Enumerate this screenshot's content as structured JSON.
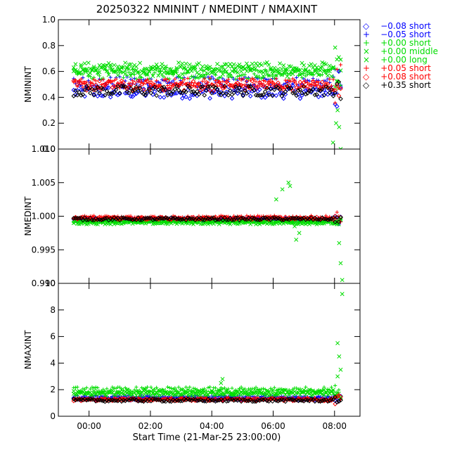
{
  "chart_data": {
    "type": "scatter",
    "title": "20250322 NMININT / NMEDINT / NMAXINT",
    "xlabel": "Start Time (21-Mar-25 23:00:00)",
    "x_ticks": [
      "00:00",
      "02:00",
      "04:00",
      "06:00",
      "08:00"
    ],
    "x_tick_hours": [
      1,
      3,
      5,
      7,
      9
    ],
    "xlim_hours": [
      0.0,
      9.83
    ],
    "legend_position": "right",
    "legend": [
      {
        "offset": "−0.08",
        "type": "short",
        "symbol": "◇",
        "color": "#0000ff"
      },
      {
        "offset": "−0.05",
        "type": "short",
        "symbol": "+",
        "color": "#0000ff"
      },
      {
        "offset": "+0.00",
        "type": "short",
        "symbol": "+",
        "color": "#00dd00"
      },
      {
        "offset": "+0.00",
        "type": "middle",
        "symbol": "×",
        "color": "#00dd00"
      },
      {
        "offset": "+0.00",
        "type": "long",
        "symbol": "×",
        "color": "#00dd00"
      },
      {
        "offset": "+0.05",
        "type": "short",
        "symbol": "+",
        "color": "#ff0000"
      },
      {
        "offset": "+0.08",
        "type": "short",
        "symbol": "◇",
        "color": "#ff0000"
      },
      {
        "offset": "+0.35",
        "type": "short",
        "symbol": "◇",
        "color": "#000000"
      }
    ],
    "panels": [
      {
        "ylabel": "NMININT",
        "ylim": [
          0.0,
          1.0
        ],
        "y_ticks": [
          "0.0",
          "0.2",
          "0.4",
          "0.6",
          "0.8",
          "1.0"
        ],
        "y_tick_values": [
          0.0,
          0.2,
          0.4,
          0.6,
          0.8,
          1.0
        ],
        "series_levels": [
          {
            "legend_index": 0,
            "level": 0.44,
            "spread": 0.05
          },
          {
            "legend_index": 1,
            "level": 0.52,
            "spread": 0.04
          },
          {
            "legend_index": 2,
            "level": 0.58,
            "spread": 0.04
          },
          {
            "legend_index": 3,
            "level": 0.63,
            "spread": 0.04
          },
          {
            "legend_index": 4,
            "level": 0.6,
            "spread": 0.04
          },
          {
            "legend_index": 5,
            "level": 0.51,
            "spread": 0.04
          },
          {
            "legend_index": 6,
            "level": 0.49,
            "spread": 0.04
          },
          {
            "legend_index": 7,
            "level": 0.45,
            "spread": 0.04
          }
        ],
        "late_points": [
          [
            8.95,
            0.05
          ],
          [
            9.05,
            0.2
          ],
          [
            9.15,
            0.17
          ],
          [
            9.2,
            0.0
          ],
          [
            9.1,
            0.3
          ]
        ]
      },
      {
        "ylabel": "NMEDINT",
        "ylim": [
          0.99,
          1.01
        ],
        "y_ticks": [
          "0.990",
          "0.995",
          "1.000",
          "1.005",
          "1.010"
        ],
        "y_tick_values": [
          0.99,
          0.995,
          1.0,
          1.005,
          1.01
        ],
        "series_levels": [
          {
            "legend_index": 0,
            "level": 0.9995,
            "spread": 0.0002
          },
          {
            "legend_index": 1,
            "level": 0.9996,
            "spread": 0.0002
          },
          {
            "legend_index": 2,
            "level": 0.9992,
            "spread": 0.0002
          },
          {
            "legend_index": 3,
            "level": 0.999,
            "spread": 0.0002
          },
          {
            "legend_index": 4,
            "level": 0.9993,
            "spread": 0.0002
          },
          {
            "legend_index": 5,
            "level": 0.9998,
            "spread": 0.0003
          },
          {
            "legend_index": 6,
            "level": 0.9997,
            "spread": 0.0002
          },
          {
            "legend_index": 7,
            "level": 0.9996,
            "spread": 0.0002
          }
        ],
        "late_points": [
          [
            7.1,
            1.0025
          ],
          [
            7.3,
            1.004
          ],
          [
            7.5,
            1.005
          ],
          [
            7.55,
            1.0045
          ],
          [
            7.7,
            0.9985
          ],
          [
            7.75,
            0.9965
          ],
          [
            7.85,
            0.9975
          ],
          [
            9.15,
            0.996
          ],
          [
            9.2,
            0.993
          ],
          [
            9.25,
            0.9905
          ]
        ]
      },
      {
        "ylabel": "NMAXINT",
        "ylim": [
          0,
          10
        ],
        "y_ticks": [
          "0",
          "2",
          "4",
          "6",
          "8",
          "10"
        ],
        "y_tick_values": [
          0,
          2,
          4,
          6,
          8,
          10
        ],
        "series_levels": [
          {
            "legend_index": 0,
            "level": 1.3,
            "spread": 0.1
          },
          {
            "legend_index": 1,
            "level": 1.45,
            "spread": 0.1
          },
          {
            "legend_index": 2,
            "level": 2.0,
            "spread": 0.2
          },
          {
            "legend_index": 3,
            "level": 1.8,
            "spread": 0.2
          },
          {
            "legend_index": 4,
            "level": 1.7,
            "spread": 0.15
          },
          {
            "legend_index": 5,
            "level": 1.3,
            "spread": 0.1
          },
          {
            "legend_index": 6,
            "level": 1.25,
            "spread": 0.1
          },
          {
            "legend_index": 7,
            "level": 1.2,
            "spread": 0.1
          }
        ],
        "late_points": [
          [
            5.3,
            2.5
          ],
          [
            5.35,
            2.8
          ],
          [
            9.1,
            5.5
          ],
          [
            9.15,
            4.5
          ],
          [
            9.2,
            3.5
          ],
          [
            9.25,
            9.2
          ],
          [
            9.1,
            3.0
          ]
        ]
      }
    ]
  }
}
